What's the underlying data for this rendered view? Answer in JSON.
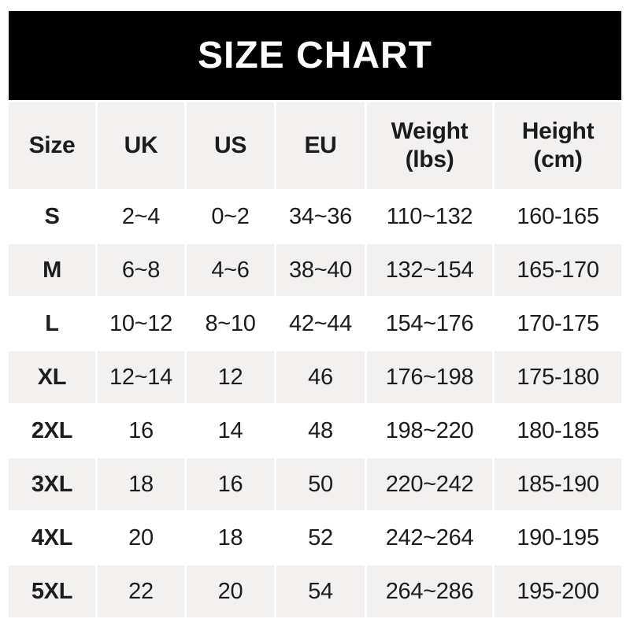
{
  "title": "SIZE CHART",
  "colors": {
    "banner_bg": "#000000",
    "banner_text": "#ffffff",
    "row_alt_bg": "#f2f1f0",
    "text": "#1c1c1c"
  },
  "header_display": [
    {
      "line1": "Size",
      "line2": ""
    },
    {
      "line1": "UK",
      "line2": ""
    },
    {
      "line1": "US",
      "line2": ""
    },
    {
      "line1": "EU",
      "line2": ""
    },
    {
      "line1": "Weight",
      "line2": "(lbs)"
    },
    {
      "line1": "Height",
      "line2": "(cm)"
    }
  ],
  "chart_data": {
    "type": "table",
    "title": "SIZE CHART",
    "columns": [
      "Size",
      "UK",
      "US",
      "EU",
      "Weight (lbs)",
      "Height (cm)"
    ],
    "rows": [
      [
        "S",
        "2~4",
        "0~2",
        "34~36",
        "110~132",
        "160-165"
      ],
      [
        "M",
        "6~8",
        "4~6",
        "38~40",
        "132~154",
        "165-170"
      ],
      [
        "L",
        "10~12",
        "8~10",
        "42~44",
        "154~176",
        "170-175"
      ],
      [
        "XL",
        "12~14",
        "12",
        "46",
        "176~198",
        "175-180"
      ],
      [
        "2XL",
        "16",
        "14",
        "48",
        "198~220",
        "180-185"
      ],
      [
        "3XL",
        "18",
        "16",
        "50",
        "220~242",
        "185-190"
      ],
      [
        "4XL",
        "20",
        "18",
        "52",
        "242~264",
        "190-195"
      ],
      [
        "5XL",
        "22",
        "20",
        "54",
        "264~286",
        "195-200"
      ]
    ]
  }
}
